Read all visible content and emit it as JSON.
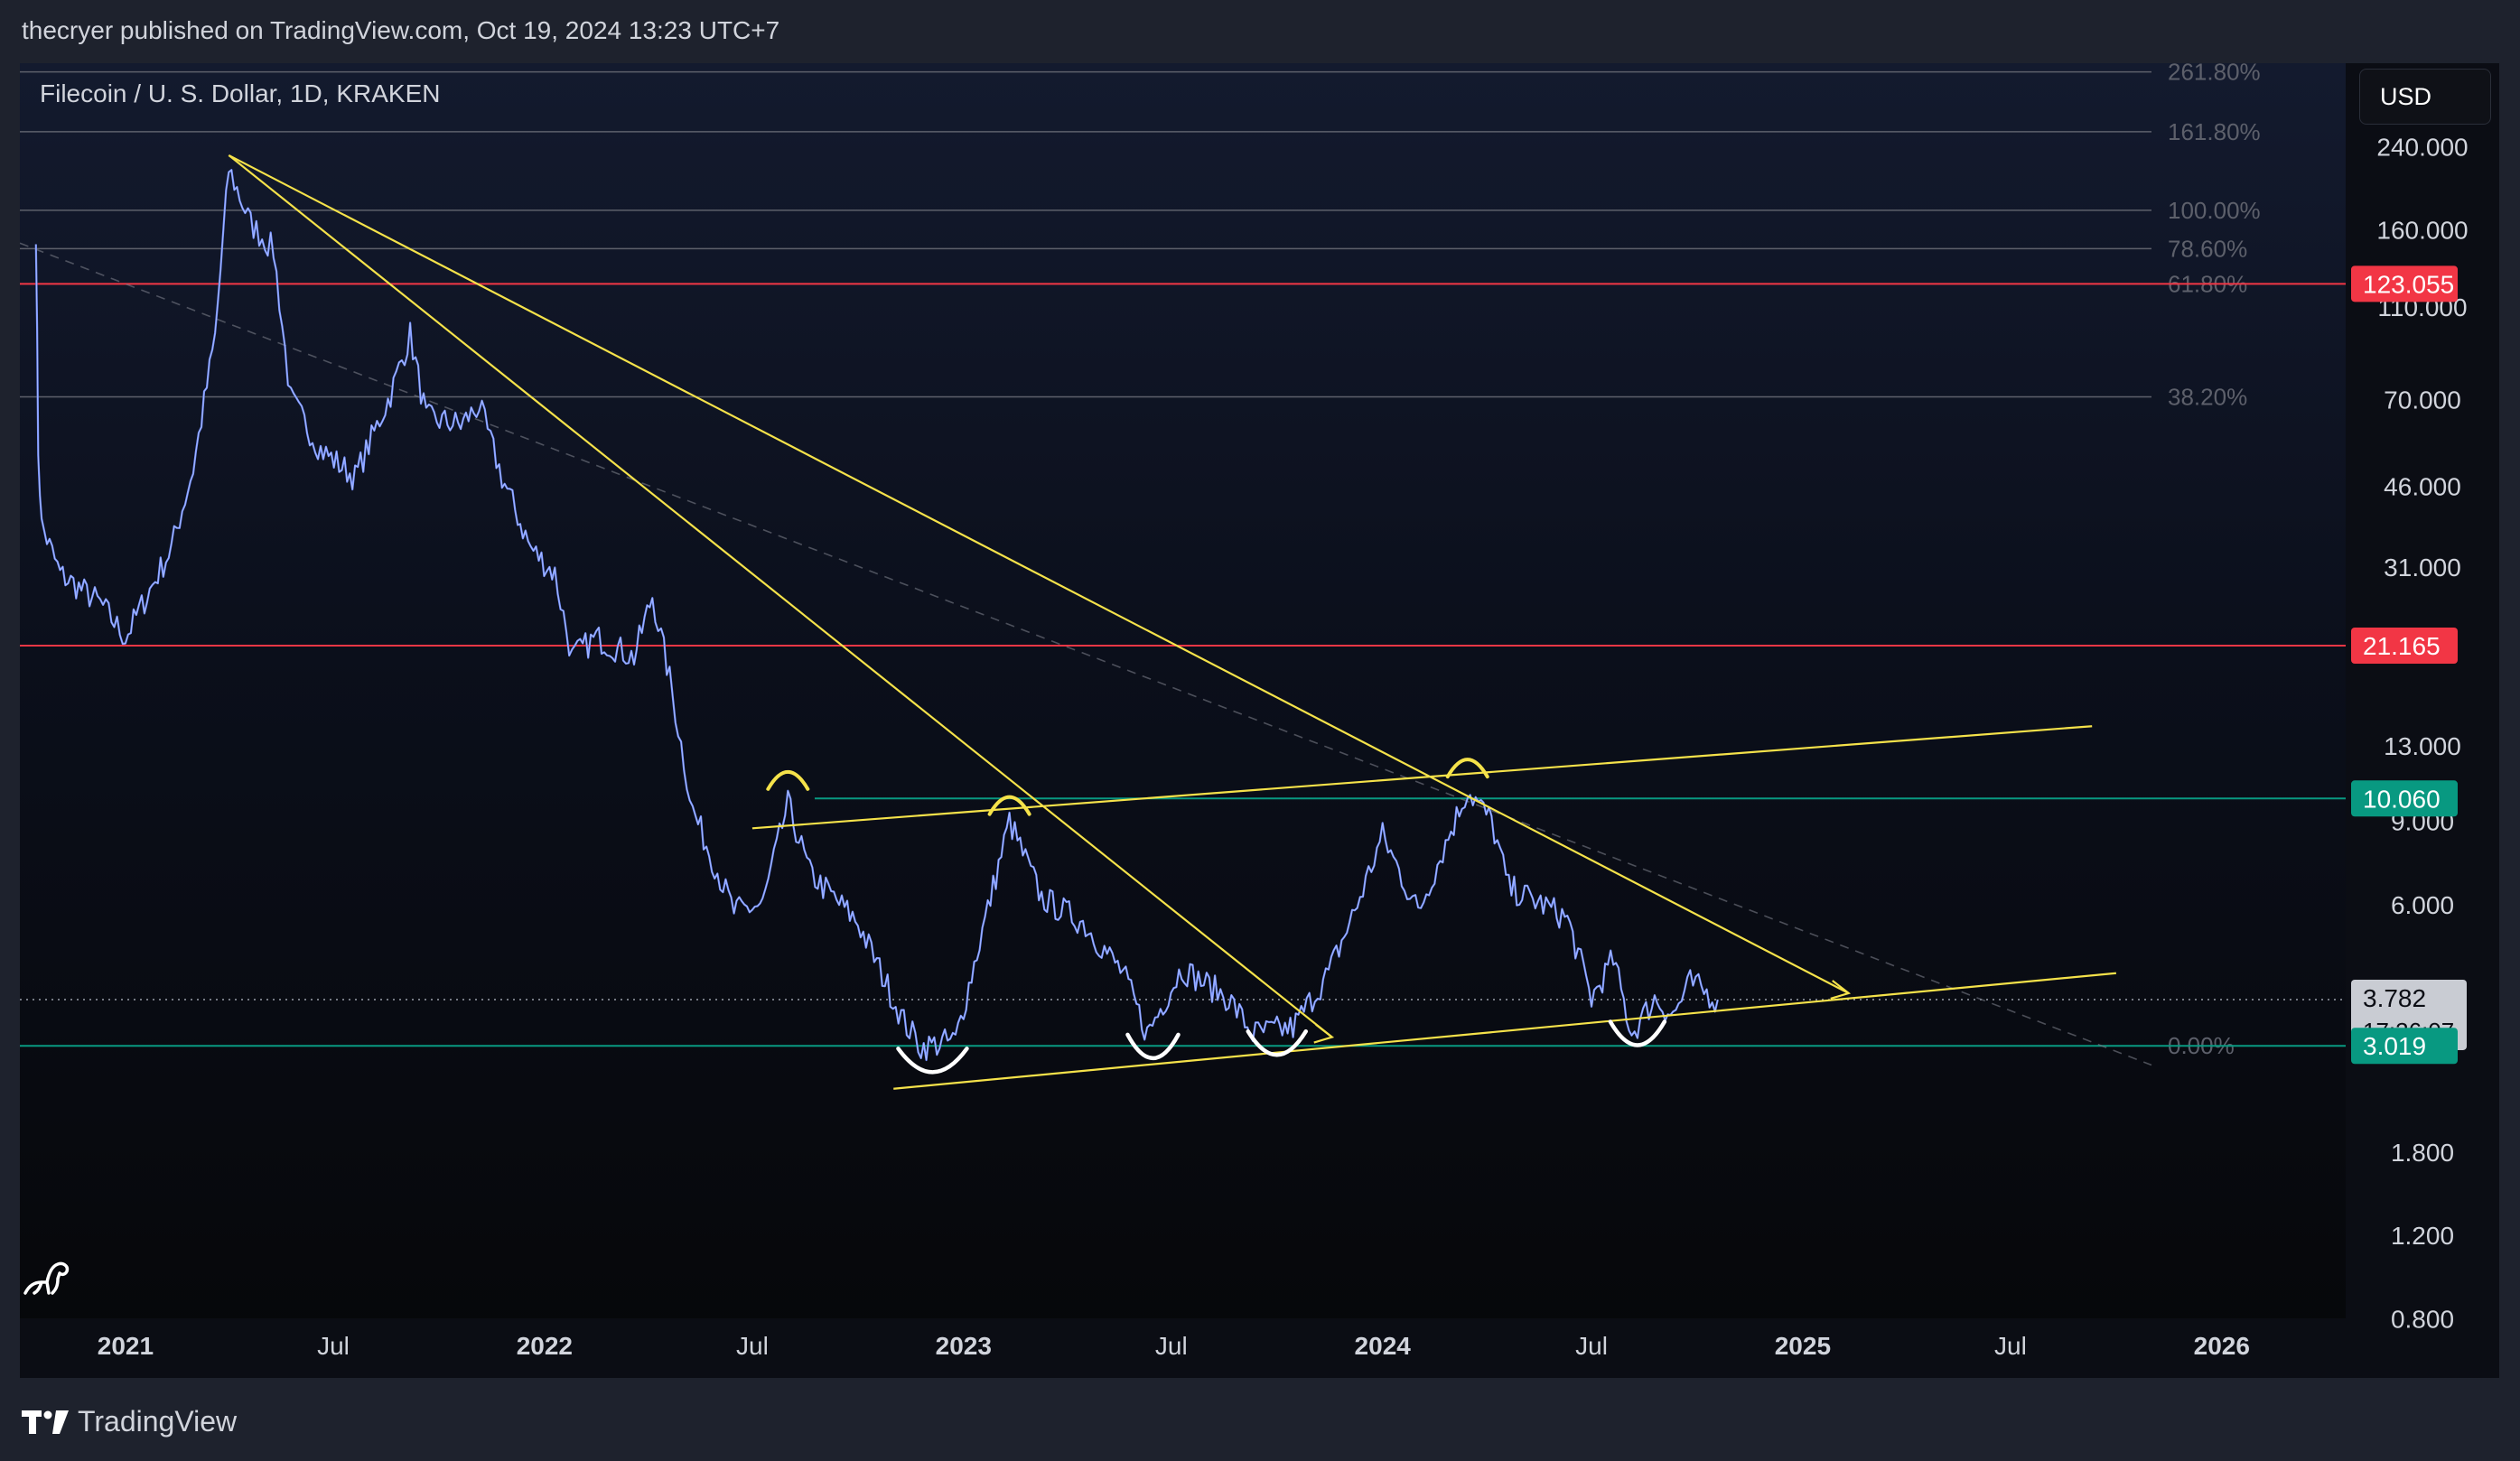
{
  "header": {
    "caption": "thecryer published on TradingView.com, Oct 19, 2024 13:23 UTC+7"
  },
  "symbol": {
    "title": "Filecoin / U. S. Dollar, 1D, KRAKEN"
  },
  "currency_button": {
    "label": "USD"
  },
  "footer": {
    "brand": "TradingView"
  },
  "colors": {
    "background": "#1e222d",
    "candles": "#6f8cff",
    "trendline": "#f5e24a",
    "resistance": "#f23645",
    "support": "#089981",
    "fib": "#5d606b"
  },
  "icons": [
    "tradingview-logo-icon",
    "dinosaur-logo-icon"
  ],
  "chart_data": {
    "type": "line",
    "x_ticks": [
      "2021",
      "Jul",
      "2022",
      "Jul",
      "2023",
      "Jul",
      "2024",
      "Jul",
      "2025",
      "Jul",
      "2026"
    ],
    "y_scale": "log",
    "y_ticks": [
      "240.000",
      "160.000",
      "110.000",
      "70.000",
      "46.000",
      "31.000",
      "13.000",
      "9.000",
      "6.000",
      "1.800",
      "1.200",
      "0.800"
    ],
    "ylim": [
      0.6,
      360
    ],
    "price_labels": [
      {
        "value": "123.055",
        "kind": "resistance"
      },
      {
        "value": "21.165",
        "kind": "resistance"
      },
      {
        "value": "10.060",
        "kind": "support"
      },
      {
        "value": "3.019",
        "kind": "support"
      }
    ],
    "last_price": {
      "value": "3.782",
      "countdown": "17:36:07"
    },
    "fib_levels": [
      "261.80%",
      "161.80%",
      "100.00%",
      "78.60%",
      "61.80%",
      "38.20%",
      "0.00%"
    ],
    "series": [
      {
        "values": [
          [
            "2020-10-15",
            160
          ],
          [
            "2020-10-17",
            55
          ],
          [
            "2020-10-20",
            38
          ],
          [
            "2020-11-05",
            30
          ],
          [
            "2020-12-10",
            26
          ],
          [
            "2021-01-01",
            22
          ],
          [
            "2021-02-10",
            34
          ],
          [
            "2021-03-01",
            50
          ],
          [
            "2021-03-20",
            95
          ],
          [
            "2021-04-01",
            215
          ],
          [
            "2021-04-20",
            165
          ],
          [
            "2021-05-10",
            145
          ],
          [
            "2021-05-25",
            70
          ],
          [
            "2021-06-20",
            55
          ],
          [
            "2021-07-20",
            48
          ],
          [
            "2021-08-20",
            72
          ],
          [
            "2021-09-06",
            96
          ],
          [
            "2021-09-20",
            64
          ],
          [
            "2021-10-20",
            62
          ],
          [
            "2021-11-05",
            68
          ],
          [
            "2021-11-25",
            48
          ],
          [
            "2021-12-20",
            34
          ],
          [
            "2022-01-10",
            30
          ],
          [
            "2022-01-25",
            20
          ],
          [
            "2022-02-15",
            22
          ],
          [
            "2022-03-20",
            20
          ],
          [
            "2022-04-05",
            27
          ],
          [
            "2022-04-20",
            18
          ],
          [
            "2022-05-10",
            9.5
          ],
          [
            "2022-06-15",
            5.8
          ],
          [
            "2022-07-10",
            6.0
          ],
          [
            "2022-08-01",
            9.8
          ],
          [
            "2022-08-20",
            7.0
          ],
          [
            "2022-10-01",
            5.5
          ],
          [
            "2022-11-10",
            3.4
          ],
          [
            "2022-11-25",
            3.0
          ],
          [
            "2022-12-25",
            3.1
          ],
          [
            "2023-01-15",
            5.0
          ],
          [
            "2023-02-10",
            9.0
          ],
          [
            "2023-03-10",
            6.2
          ],
          [
            "2023-04-15",
            5.5
          ],
          [
            "2023-05-20",
            4.3
          ],
          [
            "2023-06-10",
            3.2
          ],
          [
            "2023-07-10",
            4.4
          ],
          [
            "2023-08-20",
            3.8
          ],
          [
            "2023-09-10",
            3.2
          ],
          [
            "2023-10-15",
            3.3
          ],
          [
            "2023-11-15",
            4.3
          ],
          [
            "2023-12-10",
            6.0
          ],
          [
            "2024-01-01",
            8.4
          ],
          [
            "2024-02-01",
            5.8
          ],
          [
            "2024-03-15",
            10.5
          ],
          [
            "2024-04-05",
            9.0
          ],
          [
            "2024-04-20",
            6.5
          ],
          [
            "2024-05-20",
            6.0
          ],
          [
            "2024-06-10",
            5.6
          ],
          [
            "2024-07-01",
            3.8
          ],
          [
            "2024-07-20",
            4.6
          ],
          [
            "2024-08-05",
            3.2
          ],
          [
            "2024-08-25",
            3.8
          ],
          [
            "2024-09-10",
            3.5
          ],
          [
            "2024-09-25",
            4.1
          ],
          [
            "2024-10-19",
            3.78
          ]
        ]
      }
    ]
  }
}
